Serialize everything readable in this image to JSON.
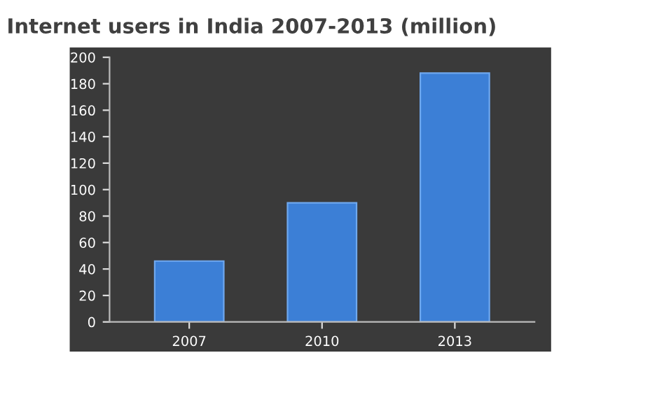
{
  "chart_data": {
    "type": "bar",
    "title": "Internet users in India 2007-2013 (million)",
    "categories": [
      "2007",
      "2010",
      "2013"
    ],
    "values": [
      46,
      90,
      188
    ],
    "color": "#3c7fd6",
    "ylim": [
      0,
      200
    ],
    "yticks": [
      0,
      20,
      40,
      60,
      80,
      100,
      120,
      140,
      160,
      180,
      200
    ],
    "grid": false,
    "legend": false
  }
}
